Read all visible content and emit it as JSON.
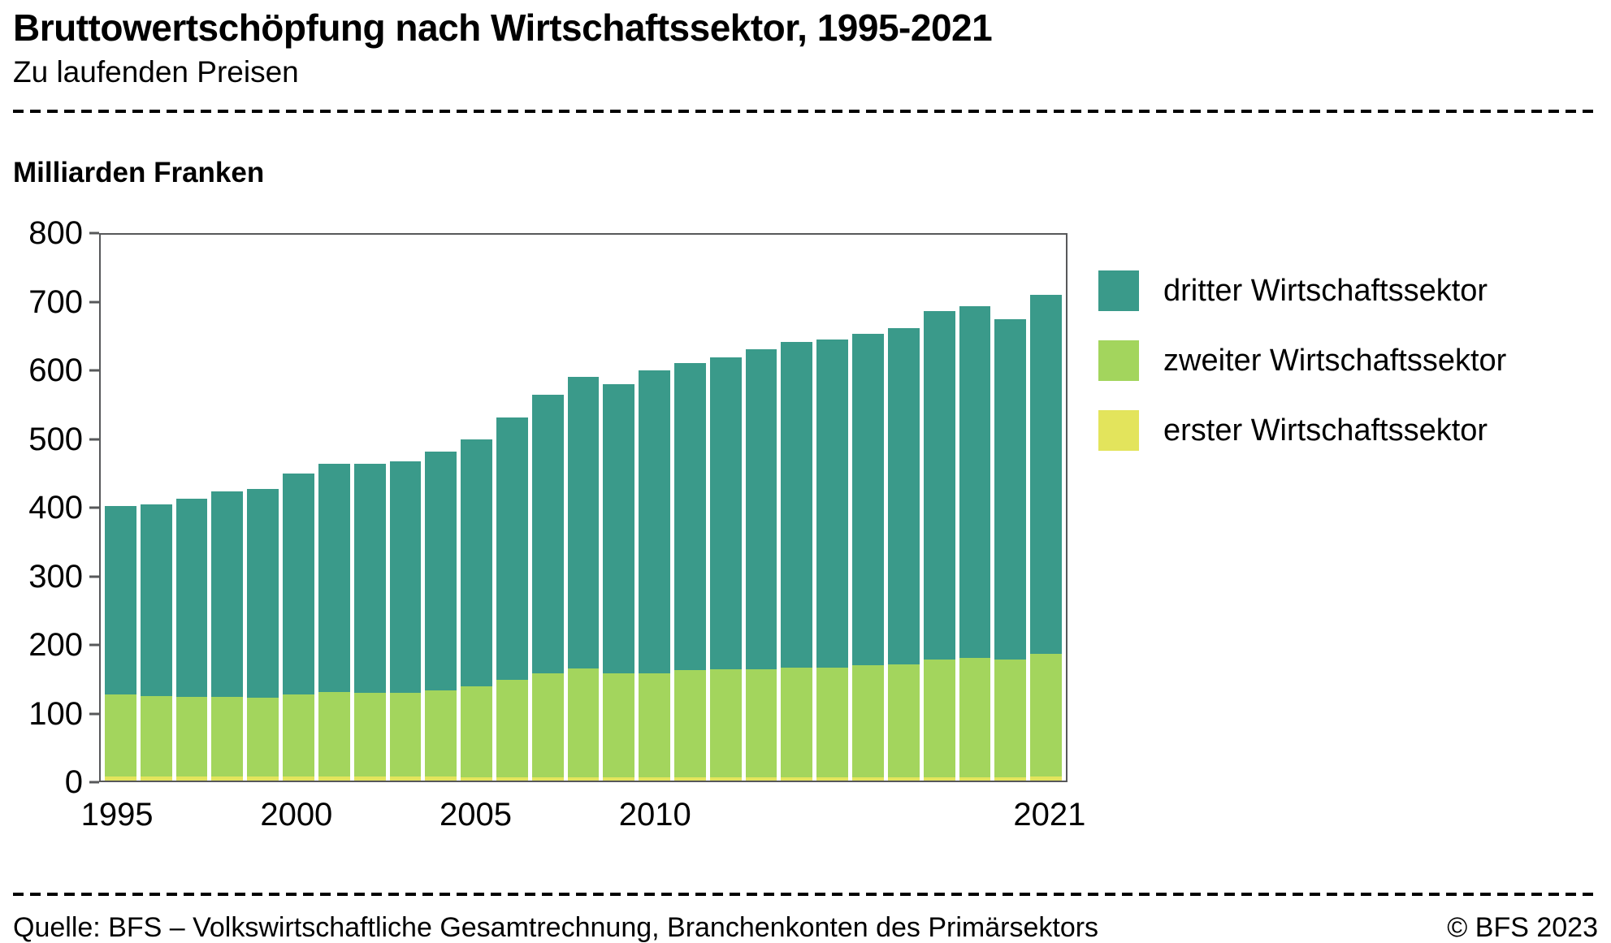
{
  "header": {
    "title": "Bruttowertschöpfung nach Wirtschaftssektor, 1995-2021",
    "subtitle": "Zu laufenden Preisen"
  },
  "chart_data": {
    "type": "bar",
    "stacked": true,
    "title": "Bruttowertschöpfung nach Wirtschaftssektor, 1995-2021",
    "ylabel": "Milliarden Franken",
    "ylim": [
      0,
      800
    ],
    "yticks": [
      0,
      100,
      200,
      300,
      400,
      500,
      600,
      700,
      800
    ],
    "grid": false,
    "legend_position": "right",
    "categories": [
      1995,
      1996,
      1997,
      1998,
      1999,
      2000,
      2001,
      2002,
      2003,
      2004,
      2005,
      2006,
      2007,
      2008,
      2009,
      2010,
      2011,
      2012,
      2013,
      2014,
      2015,
      2016,
      2017,
      2018,
      2019,
      2020,
      2021
    ],
    "xticks": [
      {
        "label": "1995",
        "index": 0
      },
      {
        "label": "2000",
        "index": 5
      },
      {
        "label": "2005",
        "index": 10
      },
      {
        "label": "2010",
        "index": 15
      },
      {
        "label": "2021",
        "index": 26
      }
    ],
    "series": [
      {
        "key": "erster",
        "name": "erster Wirtschaftssektor",
        "color": "#e3e45c",
        "values": [
          6,
          6,
          6,
          6,
          6,
          6,
          6,
          6,
          6,
          6,
          5,
          5,
          5,
          5,
          5,
          5,
          5,
          5,
          5,
          5,
          5,
          5,
          5,
          5,
          5,
          5,
          6
        ]
      },
      {
        "key": "zweiter",
        "name": "zweiter Wirtschaftssektor",
        "color": "#a3d55d",
        "values": [
          121,
          118,
          117,
          117,
          116,
          121,
          124,
          123,
          123,
          126,
          133,
          143,
          153,
          160,
          152,
          153,
          157,
          158,
          159,
          161,
          161,
          164,
          166,
          173,
          175,
          173,
          180
        ]
      },
      {
        "key": "dritter",
        "name": "dritter Wirtschaftssektor",
        "color": "#3a9a8a",
        "values": [
          276,
          281,
          290,
          301,
          306,
          323,
          335,
          336,
          339,
          351,
          362,
          384,
          408,
          427,
          424,
          443,
          450,
          458,
          468,
          477,
          481,
          486,
          492,
          511,
          516,
          498,
          526
        ]
      }
    ]
  },
  "legend": {
    "items": [
      {
        "label": "dritter Wirtschaftssektor",
        "color": "#3a9a8a"
      },
      {
        "label": "zweiter Wirtschaftssektor",
        "color": "#a3d55d"
      },
      {
        "label": "erster Wirtschaftssektor",
        "color": "#e3e45c"
      }
    ]
  },
  "footer": {
    "source": "Quelle: BFS – Volkswirtschaftliche Gesamtrechnung, Branchenkonten des Primärsektors",
    "copyright": "© BFS 2023"
  }
}
